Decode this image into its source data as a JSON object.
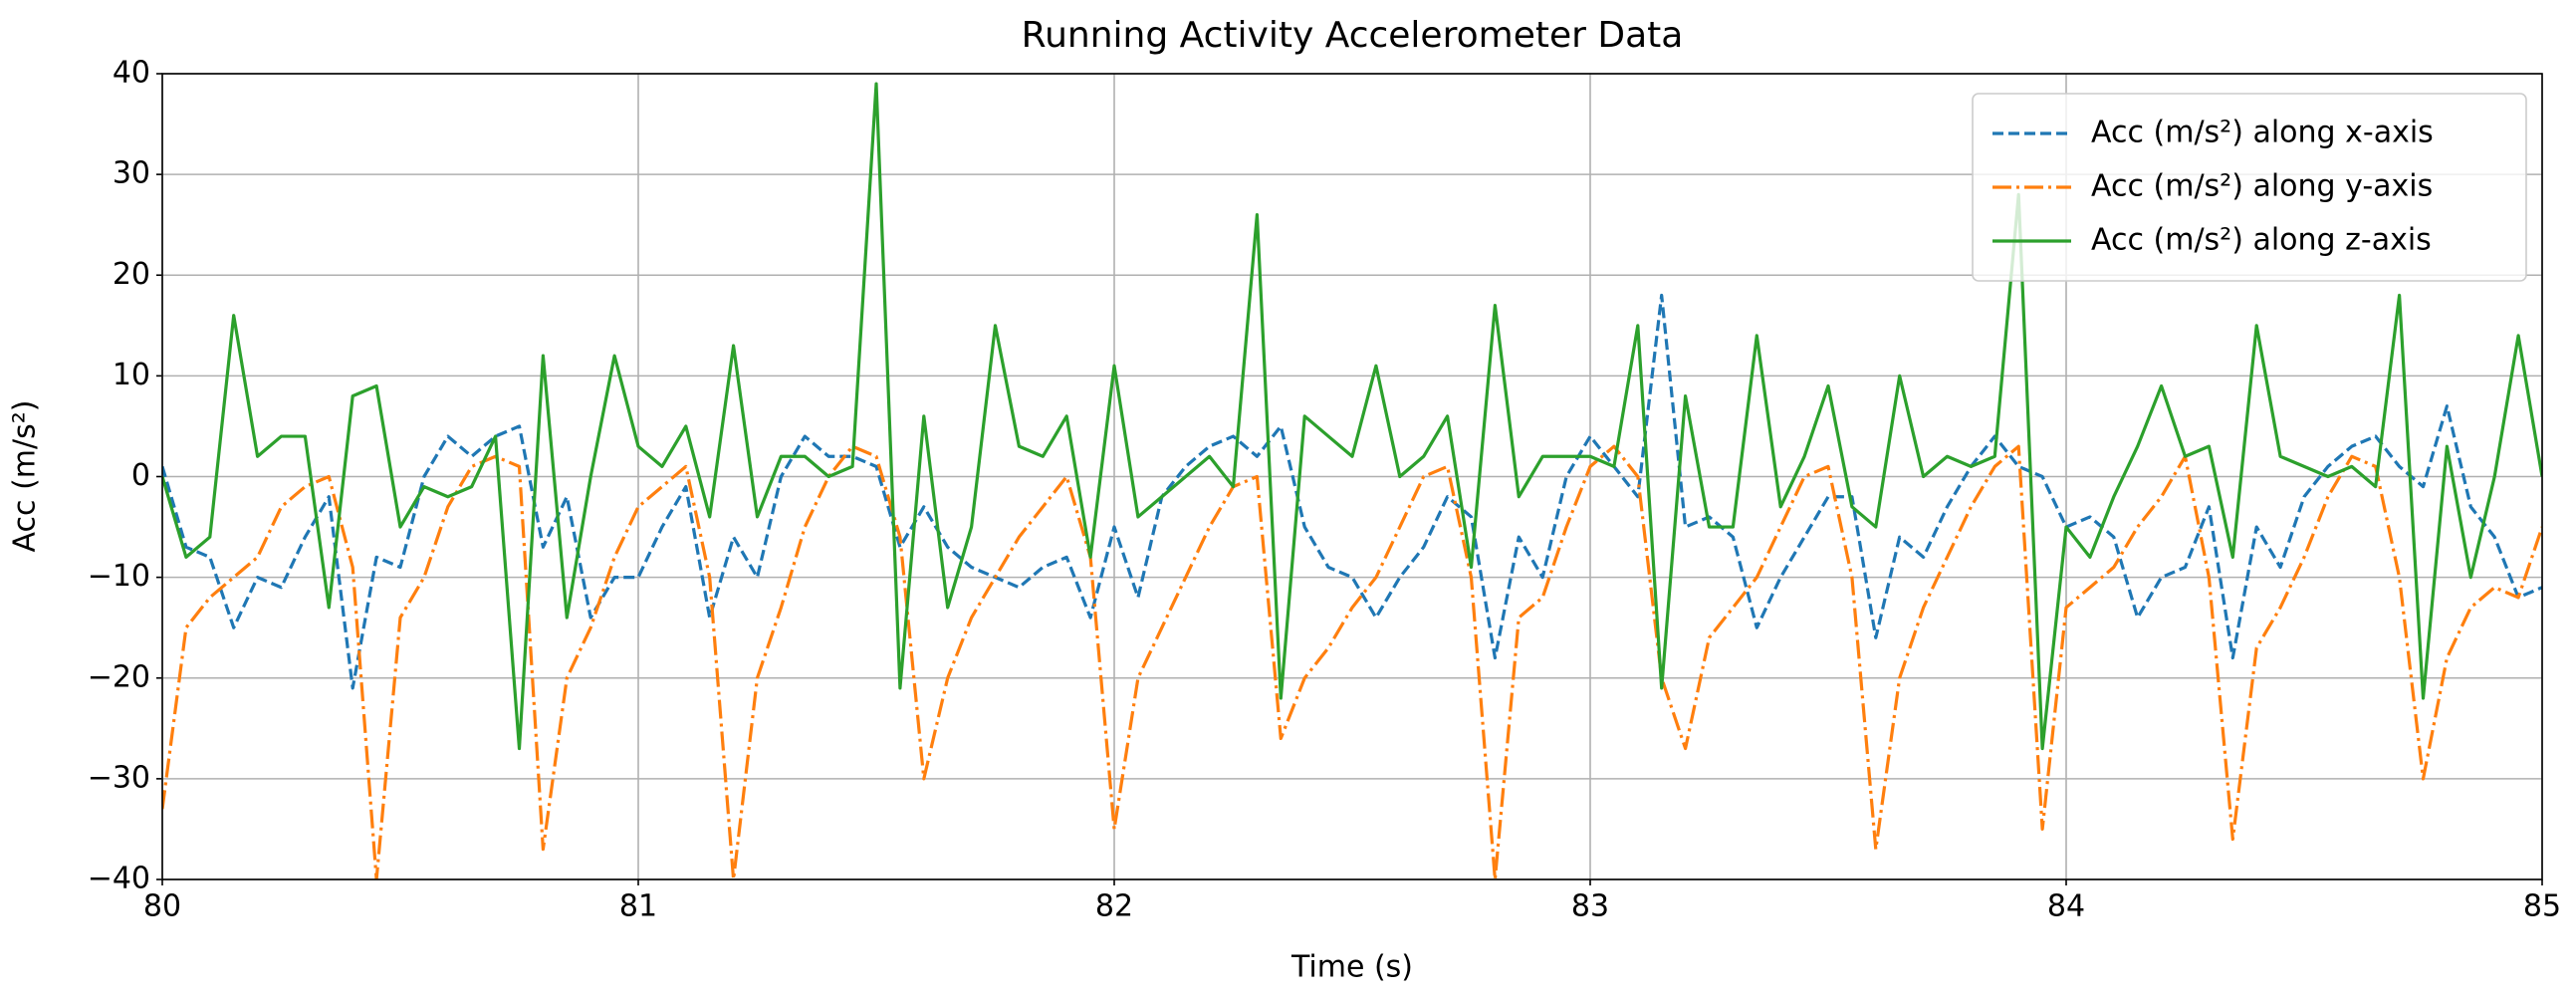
{
  "chart_data": {
    "type": "line",
    "title": "Running Activity Accelerometer Data",
    "xlabel": "Time (s)",
    "ylabel": "Acc (m/s²)",
    "x": [
      80,
      80.05,
      80.1,
      80.15,
      80.2,
      80.25,
      80.3,
      80.35,
      80.4,
      80.45,
      80.5,
      80.55,
      80.6,
      80.65,
      80.7,
      80.75,
      80.8,
      80.85,
      80.9,
      80.95,
      81,
      81.05,
      81.1,
      81.15,
      81.2,
      81.25,
      81.3,
      81.35,
      81.4,
      81.45,
      81.5,
      81.55,
      81.6,
      81.65,
      81.7,
      81.75,
      81.8,
      81.85,
      81.9,
      81.95,
      82,
      82.05,
      82.1,
      82.15,
      82.2,
      82.25,
      82.3,
      82.35,
      82.4,
      82.45,
      82.5,
      82.55,
      82.6,
      82.65,
      82.7,
      82.75,
      82.8,
      82.85,
      82.9,
      82.95,
      83,
      83.05,
      83.1,
      83.15,
      83.2,
      83.25,
      83.3,
      83.35,
      83.4,
      83.45,
      83.5,
      83.55,
      83.6,
      83.65,
      83.7,
      83.75,
      83.8,
      83.85,
      83.9,
      83.95,
      84,
      84.05,
      84.1,
      84.15,
      84.2,
      84.25,
      84.3,
      84.35,
      84.4,
      84.45,
      84.5,
      84.55,
      84.6,
      84.65,
      84.7,
      84.75,
      84.8,
      84.85,
      84.9,
      84.95,
      85
    ],
    "series": [
      {
        "name": "Acc (m/s²) along x-axis",
        "color": "#1f77b4",
        "linestyle": "dashed",
        "values": [
          1,
          -7,
          -8,
          -15,
          -10,
          -11,
          -6,
          -2,
          -21,
          -8,
          -9,
          0,
          4,
          2,
          4,
          5,
          -7,
          -2,
          -14,
          -10,
          -10,
          -5,
          -1,
          -14,
          -6,
          -10,
          0,
          4,
          2,
          2,
          1,
          -7,
          -3,
          -7,
          -9,
          -10,
          -11,
          -9,
          -8,
          -14,
          -5,
          -12,
          -2,
          1,
          3,
          4,
          2,
          5,
          -5,
          -9,
          -10,
          -14,
          -10,
          -7,
          -2,
          -4,
          -18,
          -6,
          -10,
          0,
          4,
          1,
          -2,
          18,
          -5,
          -4,
          -6,
          -15,
          -10,
          -6,
          -2,
          -2,
          -16,
          -6,
          -8,
          -3,
          1,
          4,
          1,
          0,
          -5,
          -4,
          -6,
          -14,
          -10,
          -9,
          -3,
          -18,
          -5,
          -9,
          -2,
          1,
          3,
          4,
          1,
          -1,
          7,
          -3,
          -6,
          -12,
          -11
        ]
      },
      {
        "name": "Acc (m/s²) along y-axis",
        "color": "#ff7f0e",
        "linestyle": "dashdot",
        "values": [
          -33,
          -15,
          -12,
          -10,
          -8,
          -3,
          -1,
          0,
          -9,
          -40,
          -14,
          -10,
          -3,
          1,
          2,
          1,
          -37,
          -20,
          -15,
          -8,
          -3,
          -1,
          1,
          -10,
          -40,
          -20,
          -13,
          -5,
          0,
          3,
          2,
          -6,
          -30,
          -20,
          -14,
          -10,
          -6,
          -3,
          0,
          -8,
          -35,
          -20,
          -15,
          -10,
          -5,
          -1,
          0,
          -26,
          -20,
          -17,
          -13,
          -10,
          -5,
          0,
          1,
          -10,
          -40,
          -14,
          -12,
          -5,
          1,
          3,
          0,
          -20,
          -27,
          -16,
          -13,
          -10,
          -5,
          0,
          1,
          -10,
          -37,
          -20,
          -13,
          -8,
          -3,
          1,
          3,
          -35,
          -13,
          -11,
          -9,
          -5,
          -2,
          2,
          -10,
          -36,
          -17,
          -13,
          -8,
          -2,
          2,
          1,
          -10,
          -30,
          -18,
          -13,
          -11,
          -12,
          -5
        ]
      },
      {
        "name": "Acc (m/s²) along z-axis",
        "color": "#2ca02c",
        "linestyle": "solid",
        "values": [
          0,
          -8,
          -6,
          16,
          2,
          4,
          4,
          -13,
          8,
          9,
          -5,
          -1,
          -2,
          -1,
          4,
          -27,
          12,
          -14,
          0,
          12,
          3,
          1,
          5,
          -4,
          13,
          -4,
          2,
          2,
          0,
          1,
          39,
          -21,
          6,
          -13,
          -5,
          15,
          3,
          2,
          6,
          -8,
          11,
          -4,
          -2,
          0,
          2,
          -1,
          26,
          -22,
          6,
          4,
          2,
          11,
          0,
          2,
          6,
          -9,
          17,
          -2,
          2,
          2,
          2,
          1,
          15,
          -21,
          8,
          -5,
          -5,
          14,
          -3,
          2,
          9,
          -3,
          -5,
          10,
          0,
          2,
          1,
          2,
          28,
          -27,
          -5,
          -8,
          -2,
          3,
          9,
          2,
          3,
          -8,
          15,
          2,
          1,
          0,
          1,
          -1,
          18,
          -22,
          3,
          -10,
          0,
          14,
          0
        ]
      }
    ],
    "xlim": [
      80,
      85
    ],
    "ylim": [
      -40,
      40
    ],
    "xticks": [
      80,
      81,
      82,
      83,
      84,
      85
    ],
    "yticks": [
      {
        "value": -40,
        "label": "−40"
      },
      {
        "value": -30,
        "label": "−30"
      },
      {
        "value": -20,
        "label": "−20"
      },
      {
        "value": -10,
        "label": "−10"
      },
      0,
      10,
      20,
      30,
      40
    ],
    "grid": true,
    "legend": "upper right"
  }
}
